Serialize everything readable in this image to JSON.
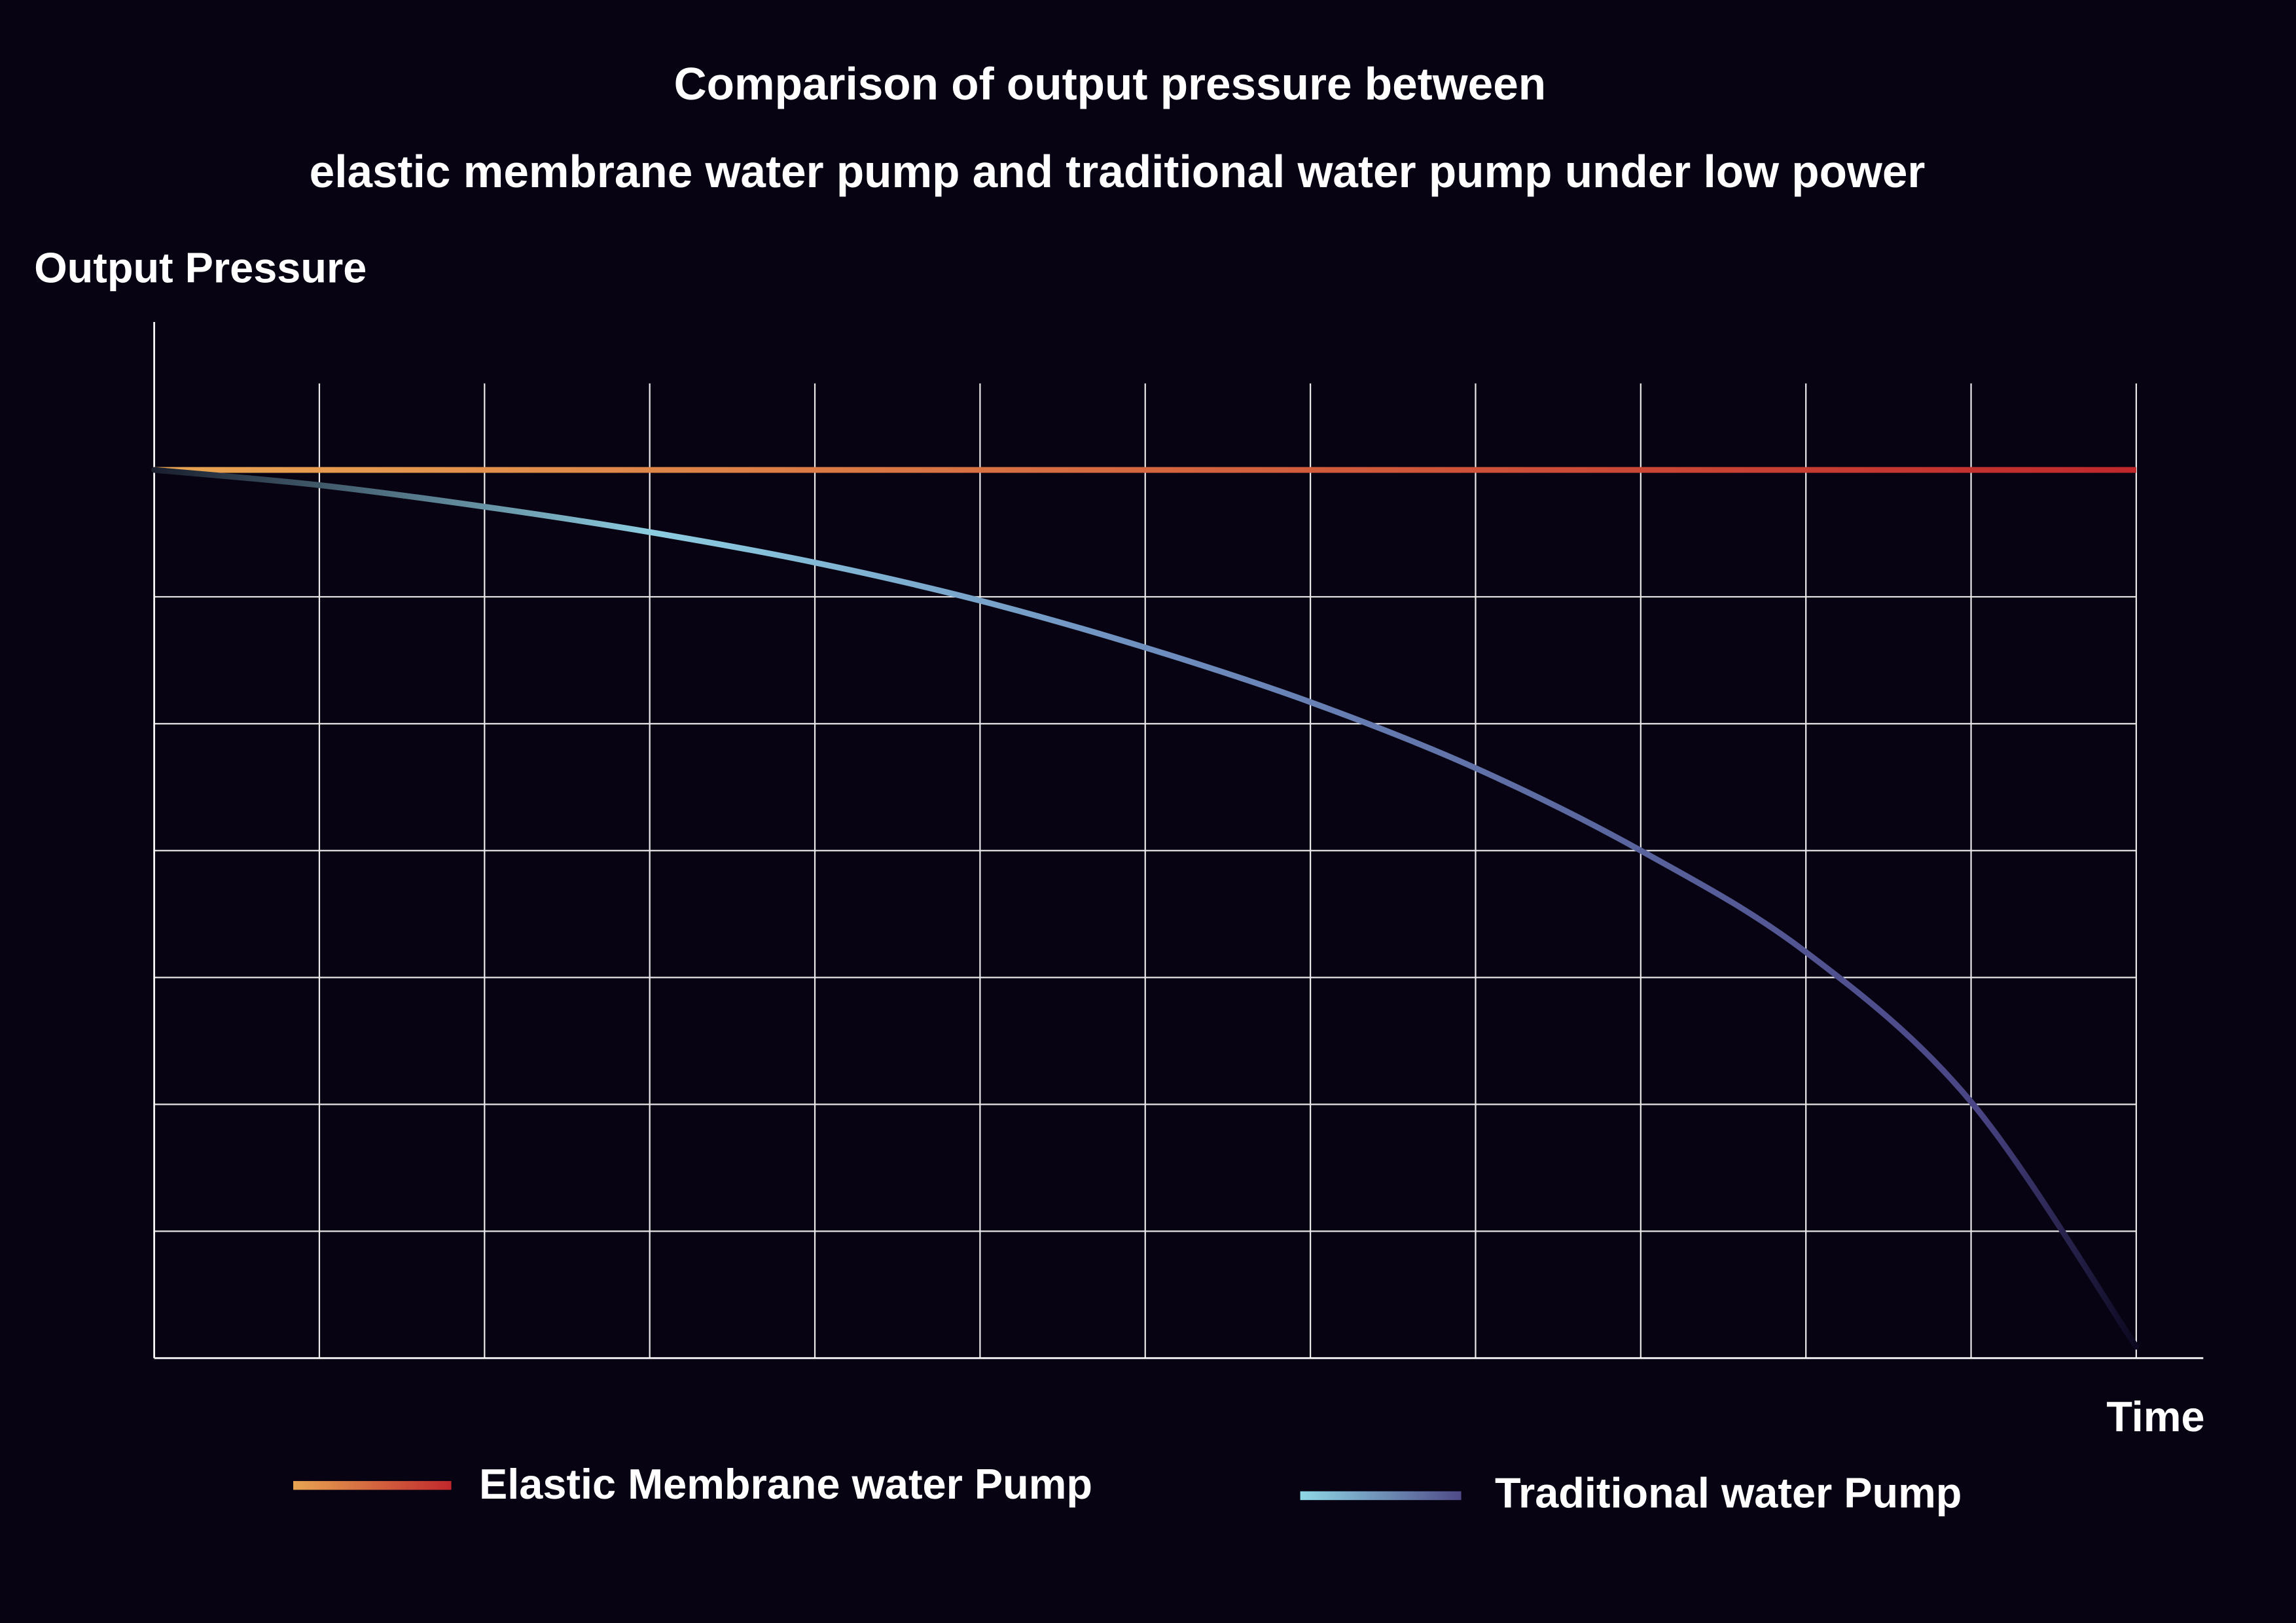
{
  "chart_data": {
    "type": "line",
    "title_line1": "Comparison of output pressure between",
    "title_line2": "elastic membrane water pump and traditional water pump under low power",
    "ylabel": "Output Pressure",
    "xlabel": "Time",
    "x": [
      0,
      1,
      2,
      3,
      4,
      5,
      6,
      7,
      8,
      9,
      10,
      11,
      12
    ],
    "xlim": [
      0,
      12.4
    ],
    "ylim": [
      0,
      8.2
    ],
    "grid": true,
    "grid_x_count": 12,
    "grid_y_count": 7,
    "legend_position": "bottom",
    "series": [
      {
        "name": "Elastic Membrane water Pump",
        "values": [
          7,
          7,
          7,
          7,
          7,
          7,
          7,
          7,
          7,
          7,
          7,
          7,
          7
        ],
        "color_start": "#e8a552",
        "color_end": "#c0282c"
      },
      {
        "name": "Traditional water Pump",
        "values": [
          7,
          6.88,
          6.71,
          6.51,
          6.27,
          5.97,
          5.6,
          5.17,
          4.65,
          4.0,
          3.2,
          2.02,
          0.09
        ],
        "color_start": "#8fd8e6",
        "color_end": "#4f4a88"
      }
    ],
    "background": "#070312"
  }
}
